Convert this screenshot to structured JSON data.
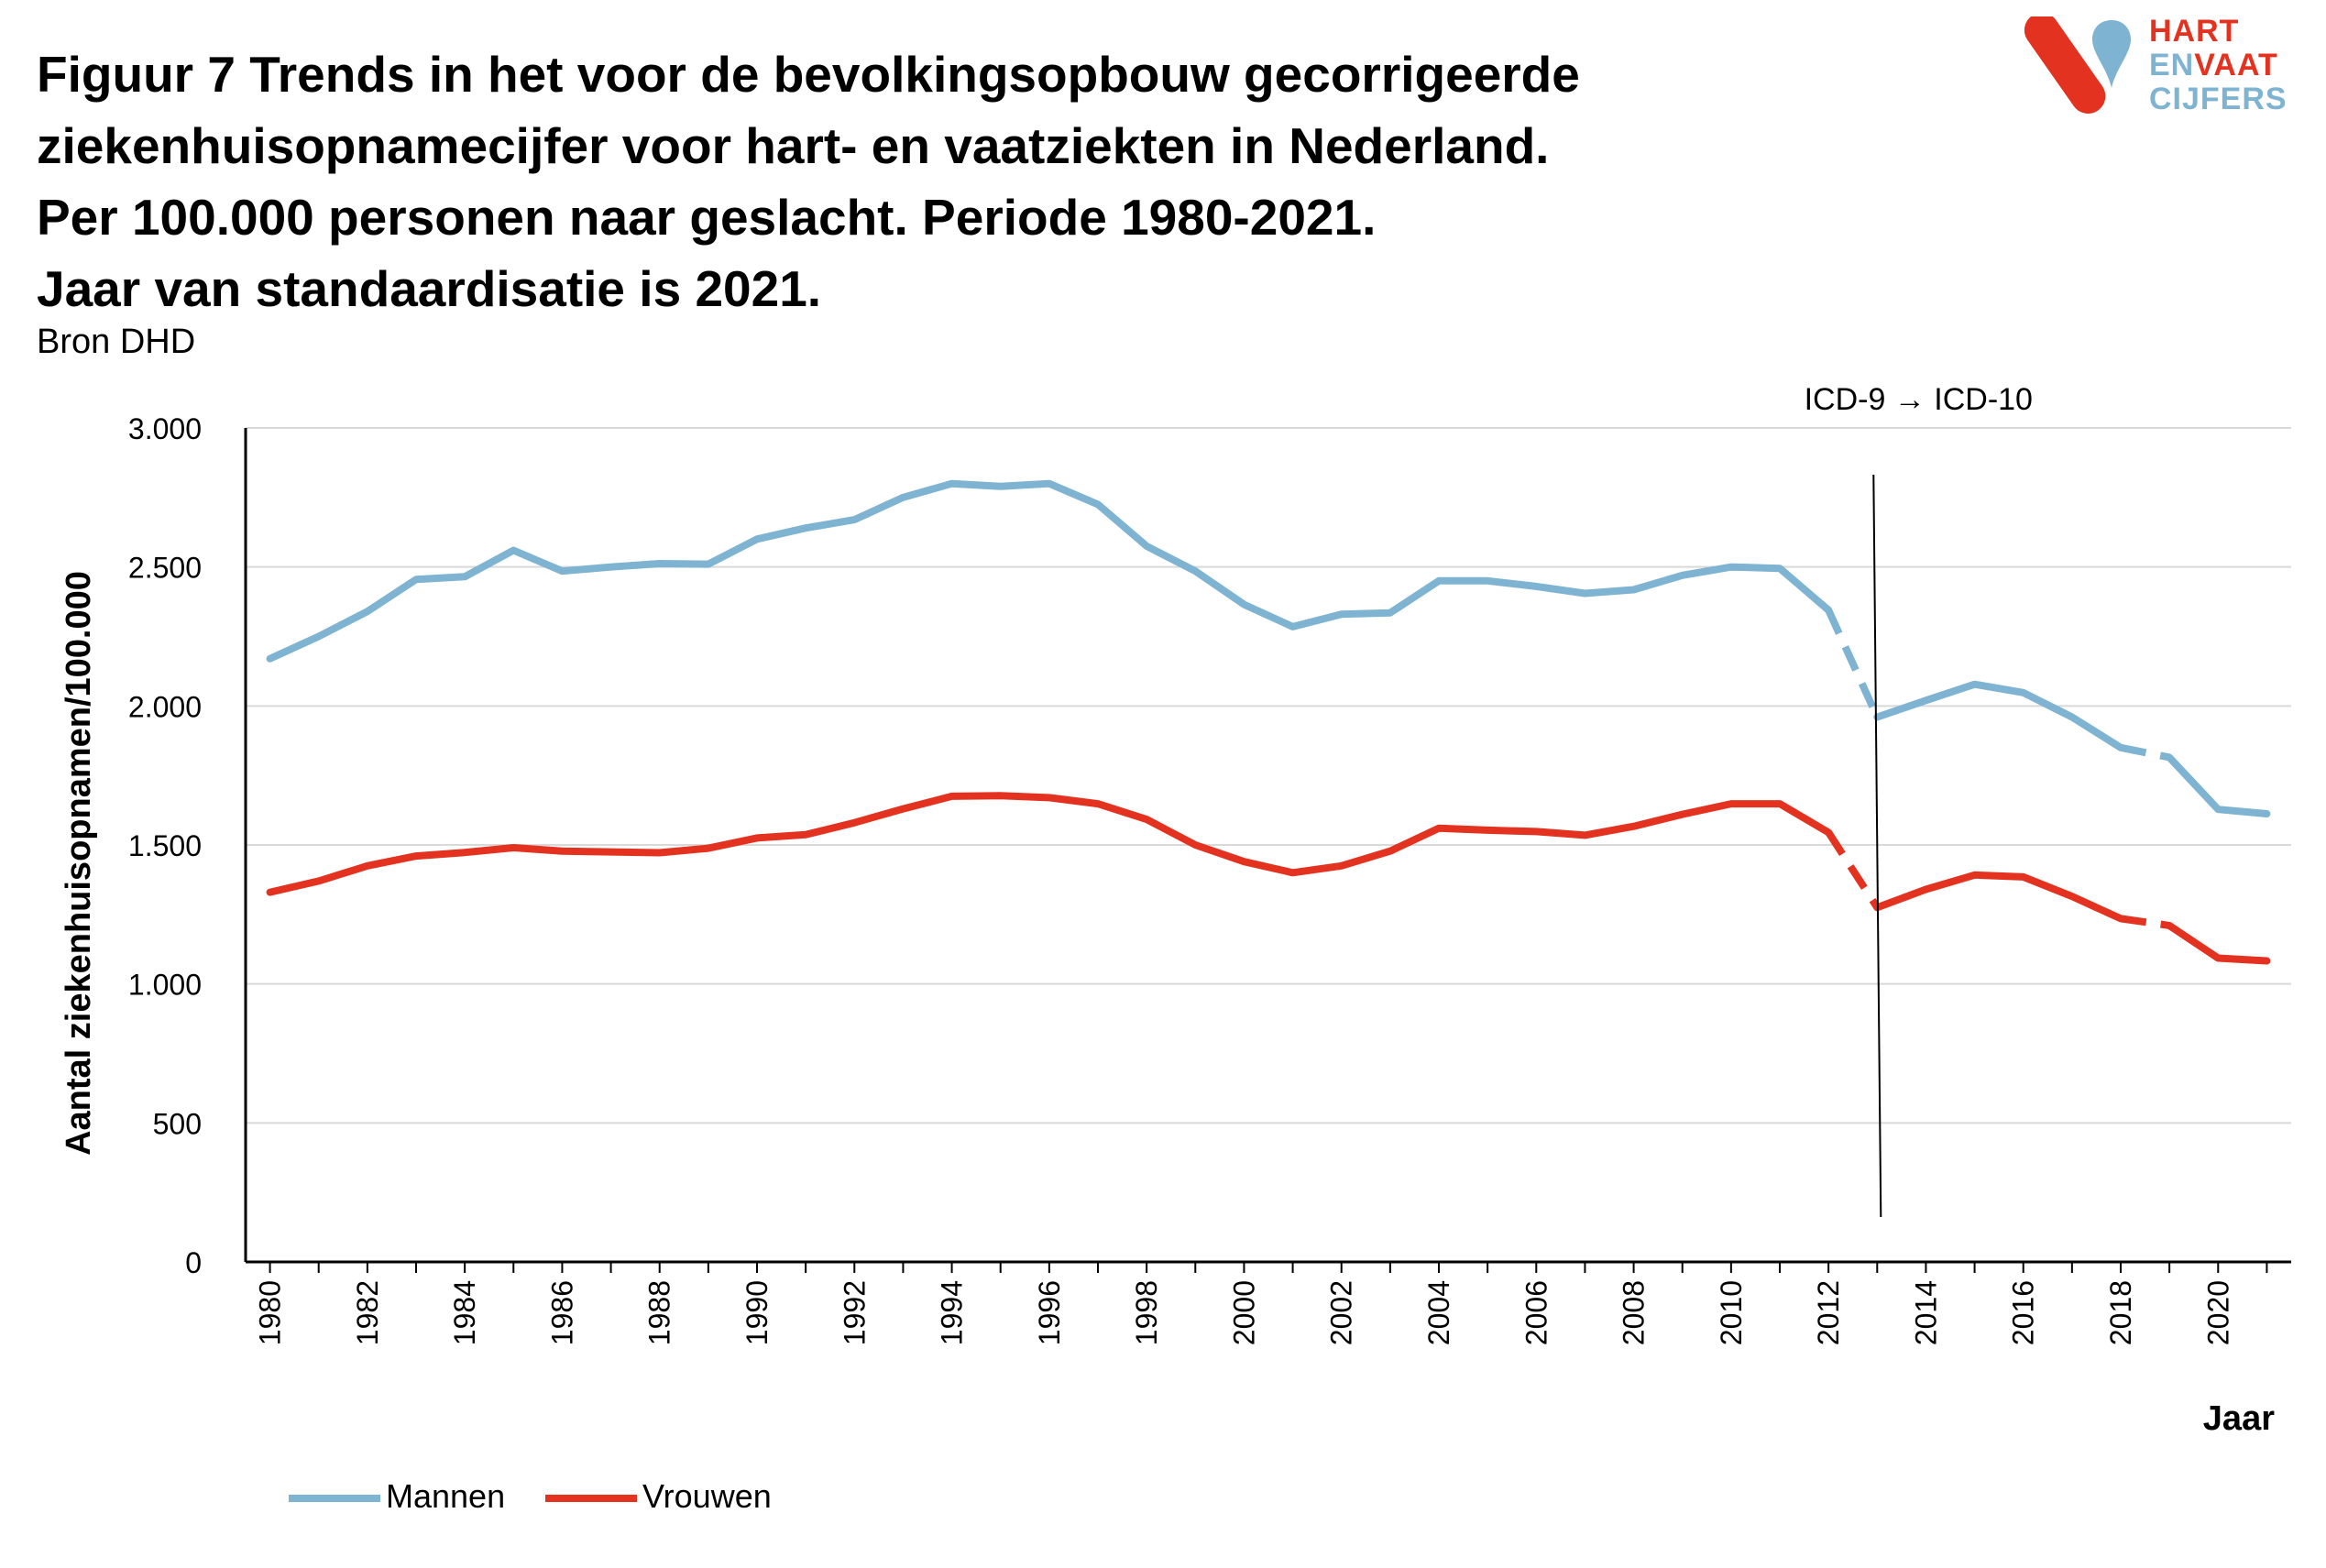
{
  "title_lines": [
    "Figuur 7 Trends in het voor de bevolkingsopbouw gecorrigeerde",
    "ziekenhuisopnamecijfer voor hart- en vaatziekten in Nederland.",
    "Per 100.000 personen naar geslacht. Periode 1980-2021.",
    "Jaar van standaardisatie is 2021."
  ],
  "source": "Bron DHD",
  "logo": {
    "line1": "HART",
    "line2a": "EN",
    "line2b": "VAAT",
    "line3": "CIJFERS",
    "red": "#e3321f",
    "blue": "#7eb3d1"
  },
  "colors": {
    "mannen": "#7eb3d1",
    "vrouwen": "#e3321f",
    "grid": "#d9d9d9",
    "axis": "#000000"
  },
  "chart_data": {
    "type": "line",
    "xlabel": "Jaar",
    "ylabel": "Aantal ziekenhuisopnamen/100.000",
    "ylim": [
      0,
      3000
    ],
    "y_ticks": [
      0,
      500,
      1000,
      1500,
      2000,
      2500,
      3000
    ],
    "y_tick_labels": [
      "0",
      "500",
      "1.000",
      "1.500",
      "2.000",
      "2.500",
      "3.000"
    ],
    "x_tick_labels": [
      "1980",
      "1982",
      "1984",
      "1986",
      "1988",
      "1990",
      "1992",
      "1994",
      "1996",
      "1998",
      "2000",
      "2002",
      "2004",
      "2006",
      "2008",
      "2010",
      "2012",
      "2014",
      "2016",
      "2018",
      "2020"
    ],
    "grid": "horizontal",
    "legend_position": "bottom-left",
    "annotation": {
      "text": "ICD-9 → ICD-10",
      "x": 2013
    },
    "dashed_segments": [
      [
        2012,
        2013
      ],
      [
        2018,
        2019
      ]
    ],
    "x": [
      1980,
      1981,
      1982,
      1983,
      1984,
      1985,
      1986,
      1987,
      1988,
      1989,
      1990,
      1991,
      1992,
      1993,
      1994,
      1995,
      1996,
      1997,
      1998,
      1999,
      2000,
      2001,
      2002,
      2003,
      2004,
      2005,
      2006,
      2007,
      2008,
      2009,
      2010,
      2011,
      2012,
      2013,
      2014,
      2015,
      2016,
      2017,
      2018,
      2019,
      2020,
      2021
    ],
    "series": [
      {
        "name": "Mannen",
        "values": [
          2170,
          2250,
          2340,
          2455,
          2465,
          2560,
          2485,
          2500,
          2512,
          2510,
          2600,
          2640,
          2670,
          2750,
          2800,
          2790,
          2800,
          2725,
          2575,
          2485,
          2365,
          2285,
          2330,
          2335,
          2450,
          2450,
          2430,
          2405,
          2418,
          2470,
          2500,
          2495,
          2345,
          1960,
          2020,
          2078,
          2048,
          1960,
          1850,
          1815,
          1628,
          1612
        ]
      },
      {
        "name": "Vrouwen",
        "values": [
          1330,
          1370,
          1425,
          1460,
          1473,
          1490,
          1478,
          1475,
          1472,
          1488,
          1525,
          1537,
          1580,
          1630,
          1675,
          1677,
          1670,
          1648,
          1592,
          1500,
          1440,
          1400,
          1425,
          1478,
          1560,
          1553,
          1548,
          1535,
          1567,
          1610,
          1648,
          1648,
          1545,
          1275,
          1340,
          1392,
          1385,
          1315,
          1235,
          1210,
          1093,
          1083
        ]
      }
    ]
  }
}
